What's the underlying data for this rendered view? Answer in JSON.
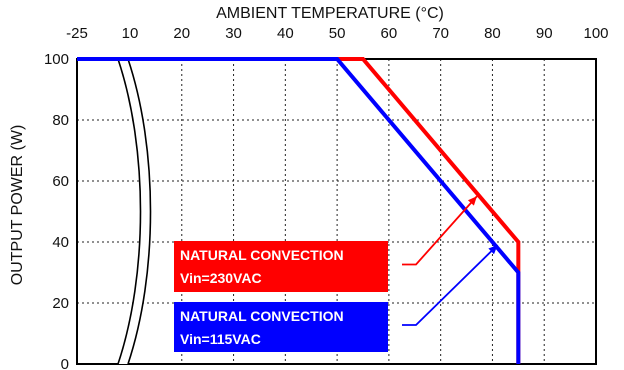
{
  "chart_data": {
    "type": "line",
    "title": "AMBIENT TEMPERATURE (°C)",
    "xlabel": "AMBIENT TEMPERATURE (°C)",
    "ylabel": "OUTPUT POWER (W)",
    "x_ticks": [
      "-25",
      "10",
      "20",
      "30",
      "40",
      "50",
      "60",
      "70",
      "80",
      "90",
      "100"
    ],
    "y_ticks": [
      "0",
      "20",
      "40",
      "60",
      "80",
      "100"
    ],
    "xlim": [
      -25,
      100
    ],
    "ylim": [
      0,
      100
    ],
    "x_axis_break": [
      -25,
      10
    ],
    "grid": true,
    "series": [
      {
        "name": "NATURAL CONVECTION Vin=230VAC",
        "color": "#ff0000",
        "points": [
          [
            -25,
            100
          ],
          [
            55,
            100
          ],
          [
            85,
            40
          ],
          [
            85,
            0
          ]
        ]
      },
      {
        "name": "NATURAL CONVECTION Vin=115VAC",
        "color": "#0000ff",
        "points": [
          [
            -25,
            100
          ],
          [
            50,
            100
          ],
          [
            85,
            30
          ],
          [
            85,
            0
          ]
        ]
      }
    ],
    "annotations": [
      {
        "text_line1": "NATURAL CONVECTION",
        "text_line2": "Vin=230VAC",
        "background": "#ff0000",
        "target_series": 0,
        "target": [
          77,
          55
        ]
      },
      {
        "text_line1": "NATURAL CONVECTION",
        "text_line2": "Vin=115VAC",
        "background": "#0000ff",
        "target_series": 1,
        "target": [
          81,
          39
        ]
      }
    ]
  }
}
